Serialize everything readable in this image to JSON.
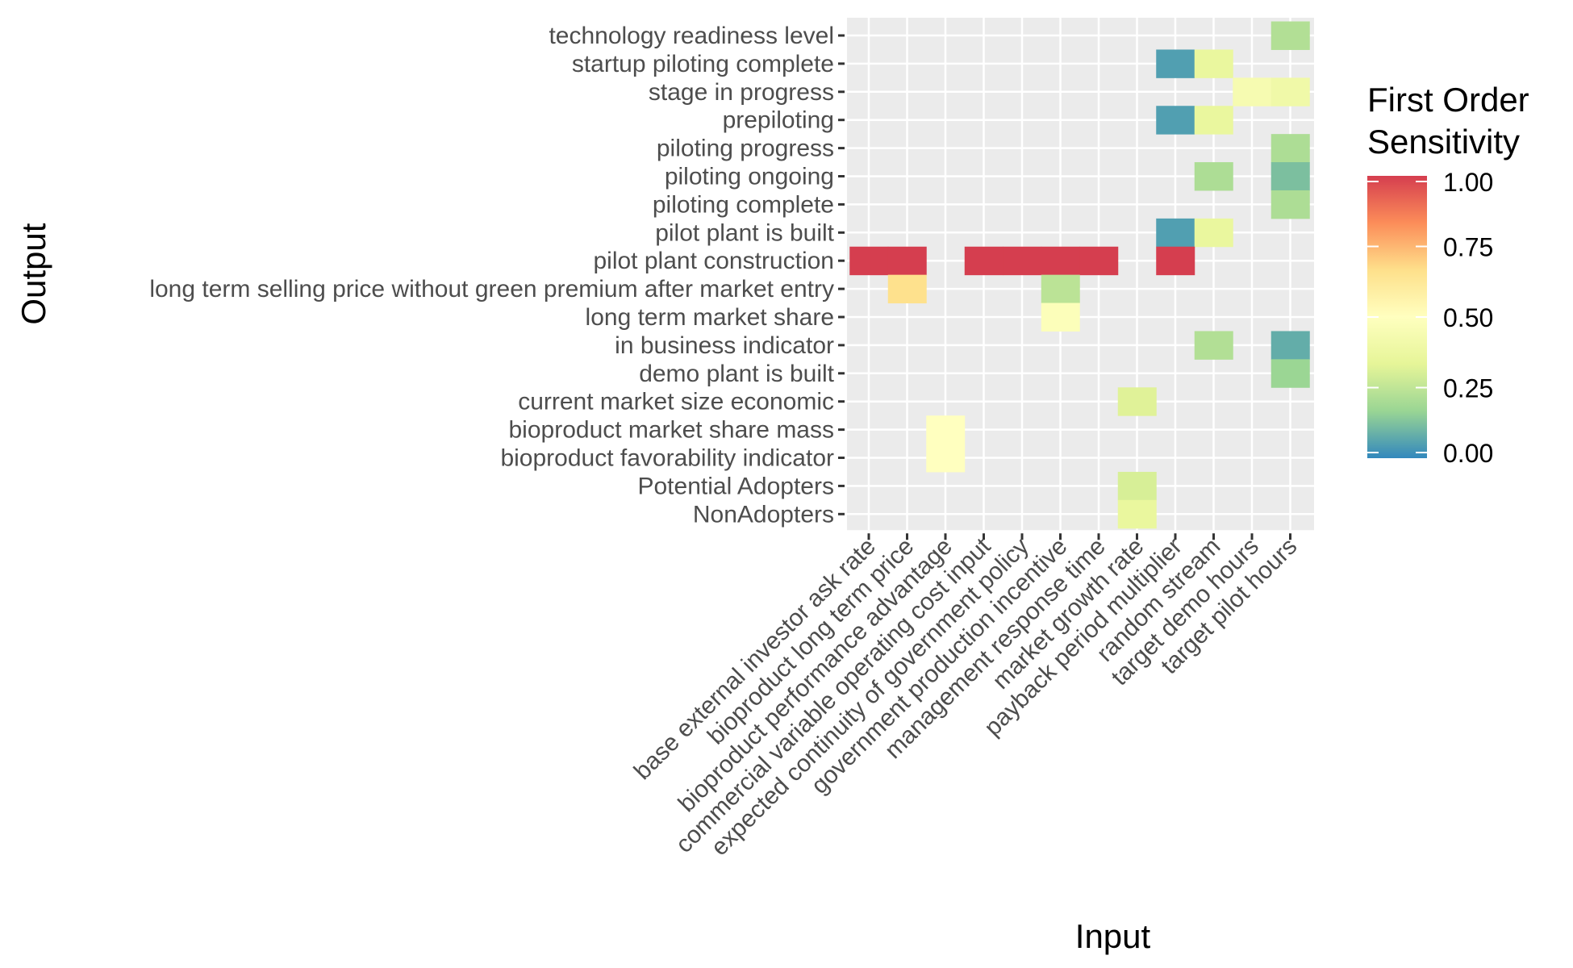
{
  "chart_data": {
    "type": "heatmap",
    "xlabel": "Input",
    "ylabel": "Output",
    "x_categories": [
      "base external investor ask rate",
      "bioproduct long term price",
      "bioproduct performance advantage",
      "commercial variable operating cost input",
      "expected continuity of government policy",
      "government production incentive",
      "management response time",
      "market growth rate",
      "payback period multiplier",
      "random stream",
      "target demo hours",
      "target pilot hours"
    ],
    "y_categories": [
      "technology readiness level",
      "startup piloting complete",
      "stage in progress",
      "prepiloting",
      "piloting progress",
      "piloting ongoing",
      "piloting complete",
      "pilot plant is built",
      "pilot plant construction",
      "long term selling price without green premium after market entry",
      "long term market share",
      "in business indicator",
      "demo plant is built",
      "current market size economic",
      "bioproduct market share mass",
      "bioproduct favorability indicator",
      "Potential Adopters",
      "NonAdopters"
    ],
    "cells": [
      {
        "x": "target pilot hours",
        "y": "technology readiness level",
        "value": 0.22
      },
      {
        "x": "payback period multiplier",
        "y": "startup piloting complete",
        "value": 0.05
      },
      {
        "x": "random stream",
        "y": "startup piloting complete",
        "value": 0.36
      },
      {
        "x": "target demo hours",
        "y": "stage in progress",
        "value": 0.44
      },
      {
        "x": "target pilot hours",
        "y": "stage in progress",
        "value": 0.4
      },
      {
        "x": "payback period multiplier",
        "y": "prepiloting",
        "value": 0.05
      },
      {
        "x": "random stream",
        "y": "prepiloting",
        "value": 0.36
      },
      {
        "x": "target pilot hours",
        "y": "piloting progress",
        "value": 0.21
      },
      {
        "x": "random stream",
        "y": "piloting ongoing",
        "value": 0.21
      },
      {
        "x": "target pilot hours",
        "y": "piloting ongoing",
        "value": 0.12
      },
      {
        "x": "target pilot hours",
        "y": "piloting complete",
        "value": 0.21
      },
      {
        "x": "payback period multiplier",
        "y": "pilot plant is built",
        "value": 0.05
      },
      {
        "x": "random stream",
        "y": "pilot plant is built",
        "value": 0.36
      },
      {
        "x": "base external investor ask rate",
        "y": "pilot plant construction",
        "value": 1.0
      },
      {
        "x": "bioproduct long term price",
        "y": "pilot plant construction",
        "value": 1.0
      },
      {
        "x": "commercial variable operating cost input",
        "y": "pilot plant construction",
        "value": 1.0
      },
      {
        "x": "expected continuity of government policy",
        "y": "pilot plant construction",
        "value": 1.0
      },
      {
        "x": "government production incentive",
        "y": "pilot plant construction",
        "value": 1.0
      },
      {
        "x": "management response time",
        "y": "pilot plant construction",
        "value": 1.0
      },
      {
        "x": "payback period multiplier",
        "y": "pilot plant construction",
        "value": 1.0
      },
      {
        "x": "bioproduct long term price",
        "y": "long term selling price without green premium after market entry",
        "value": 0.66
      },
      {
        "x": "government production incentive",
        "y": "long term selling price without green premium after market entry",
        "value": 0.24
      },
      {
        "x": "government production incentive",
        "y": "long term market share",
        "value": 0.48
      },
      {
        "x": "random stream",
        "y": "in business indicator",
        "value": 0.22
      },
      {
        "x": "target pilot hours",
        "y": "in business indicator",
        "value": 0.08
      },
      {
        "x": "target pilot hours",
        "y": "demo plant is built",
        "value": 0.17
      },
      {
        "x": "market growth rate",
        "y": "current market size economic",
        "value": 0.32
      },
      {
        "x": "bioproduct performance advantage",
        "y": "bioproduct market share mass",
        "value": 0.5
      },
      {
        "x": "bioproduct performance advantage",
        "y": "bioproduct favorability indicator",
        "value": 0.5
      },
      {
        "x": "market growth rate",
        "y": "Potential Adopters",
        "value": 0.3
      },
      {
        "x": "market growth rate",
        "y": "NonAdopters",
        "value": 0.36
      }
    ],
    "legend": {
      "title": [
        "First Order",
        "Sensitivity"
      ],
      "ticks": [
        "1.00",
        "0.75",
        "0.50",
        "0.25",
        "0.00"
      ],
      "placement": "right"
    },
    "colors": {
      "panel_background": "#ebebeb",
      "grid": "#ffffff",
      "scale": [
        "#3288bd",
        "#99d594",
        "#e6f598",
        "#ffffbf",
        "#fee08b",
        "#fc8d59",
        "#d53e4f"
      ]
    },
    "value_range": [
      0,
      1
    ],
    "grid": true
  }
}
